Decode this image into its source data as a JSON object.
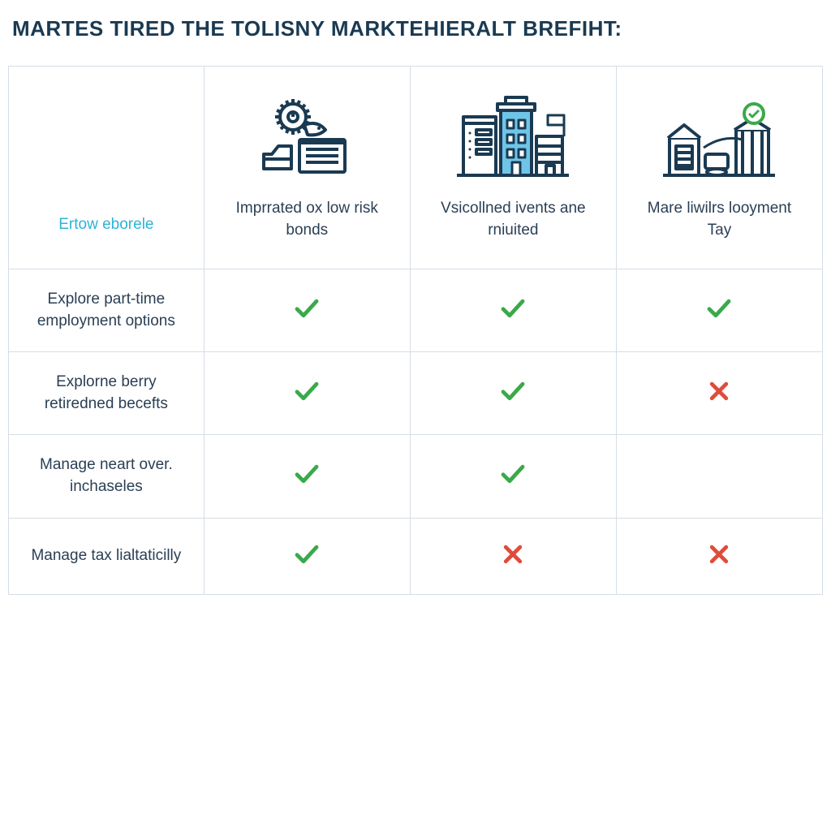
{
  "title": "MARTES TIRED THE TOLISNY MARKTEHIERALT BREFIHT:",
  "colors": {
    "title": "#1a3a52",
    "border": "#d5dde5",
    "text": "#2a3f54",
    "accent_blue": "#2bb4d8",
    "icon_stroke": "#1a3a52",
    "icon_fill_blue": "#6fc5e8",
    "check": "#3aa94a",
    "cross": "#e04b3a"
  },
  "typography": {
    "title_fontsize": 26,
    "label_fontsize": 19,
    "row_fontsize": 19
  },
  "table": {
    "first_header_label": "Ertow eborele",
    "columns": [
      {
        "label": "Imprrated ox low risk bonds",
        "icon": "gear-bonds-icon"
      },
      {
        "label": "Vsicollned ivents ane rniuited",
        "icon": "buildings-icon"
      },
      {
        "label": "Mare liwilrs looyment Tay",
        "icon": "warehouse-check-icon"
      }
    ],
    "rows": [
      {
        "label": "Explore part-time employment options",
        "cells": [
          "check",
          "check",
          "check"
        ]
      },
      {
        "label": "Explorne berry retiredned becefts",
        "cells": [
          "check",
          "check",
          "cross"
        ]
      },
      {
        "label": "Manage neart over. inchaseles",
        "cells": [
          "check",
          "check",
          "empty"
        ]
      },
      {
        "label": "Manage tax lialtaticilly",
        "cells": [
          "check",
          "cross",
          "cross"
        ]
      }
    ]
  }
}
